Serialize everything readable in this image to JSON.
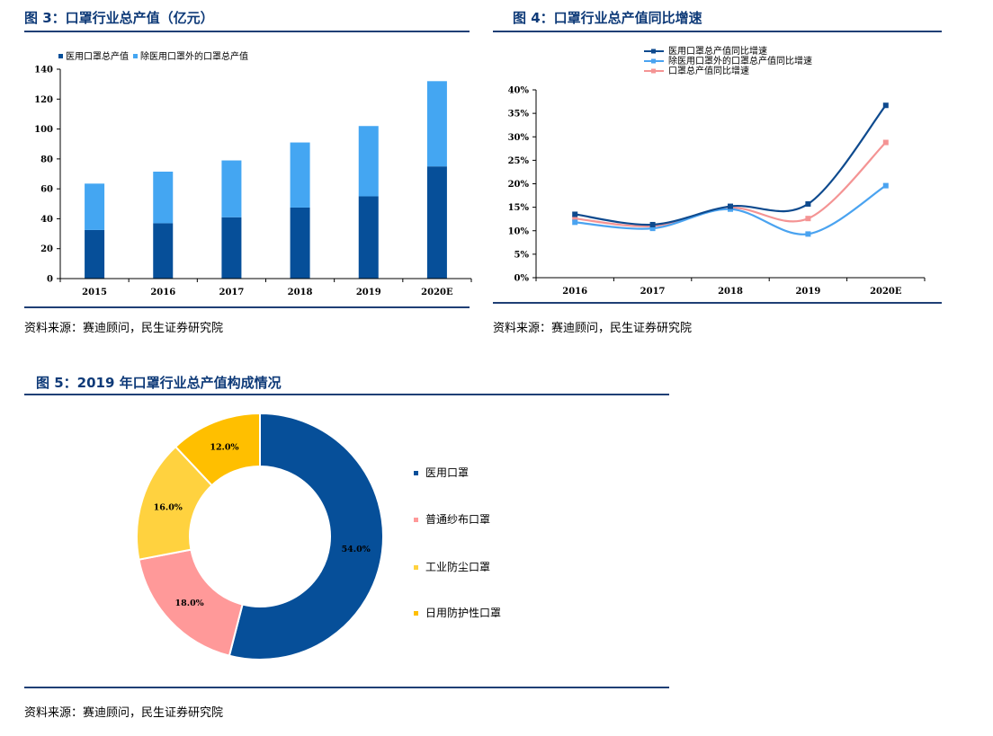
{
  "fig3": {
    "title": "图 3：口罩行业总产值（亿元）",
    "source": "资料来源：赛迪顾问，民生证券研究院",
    "colors": {
      "medical": "#064f99",
      "other": "#44a6f2"
    }
  },
  "fig4": {
    "title": "图 4：口罩行业总产值同比增速",
    "source": "资料来源：赛迪顾问，民生证券研究院",
    "colors": {
      "medical": "#0e4a8e",
      "other": "#4aa3f0",
      "total": "#f49494"
    }
  },
  "fig5": {
    "title": "图 5：2019 年口罩行业总产值构成情况",
    "source": "资料来源：赛迪顾问，民生证券研究院",
    "colors": [
      "#064f99",
      "#ff9999",
      "#ffd23f",
      "#ffbf00"
    ]
  },
  "chart_data": [
    {
      "type": "bar",
      "stacked": true,
      "categories": [
        "2015",
        "2016",
        "2017",
        "2018",
        "2019",
        "2020E"
      ],
      "series": [
        {
          "name": "医用口罩总产值",
          "values": [
            32.5,
            37,
            41,
            47.5,
            55,
            75
          ]
        },
        {
          "name": "除医用口罩外的口罩总产值",
          "values": [
            31,
            34.5,
            38,
            43.5,
            47,
            57
          ]
        }
      ],
      "ylim": [
        0,
        140
      ],
      "yticks": [
        0,
        20,
        40,
        60,
        80,
        100,
        120,
        140
      ],
      "legend_position": "top-left"
    },
    {
      "type": "line",
      "categories": [
        "2016",
        "2017",
        "2018",
        "2019",
        "2020E"
      ],
      "series": [
        {
          "name": "医用口罩总产值同比增速",
          "values": [
            13.5,
            11.3,
            15.2,
            15.7,
            36.7
          ]
        },
        {
          "name": "除医用口罩外的口罩总产值同比增速",
          "values": [
            11.8,
            10.5,
            14.6,
            9.3,
            19.6
          ]
        },
        {
          "name": "口罩总产值同比增速",
          "values": [
            12.6,
            11,
            14.9,
            12.6,
            28.8
          ]
        }
      ],
      "ylim": [
        0,
        40
      ],
      "yticks": [
        "0%",
        "5%",
        "10%",
        "15%",
        "20%",
        "25%",
        "30%",
        "35%",
        "40%"
      ],
      "legend_position": "top"
    },
    {
      "type": "pie",
      "donut": true,
      "labels": [
        "医用口罩",
        "普通纱布口罩",
        "工业防尘口罩",
        "日用防护性口罩"
      ],
      "values": [
        54.0,
        18.0,
        16.0,
        12.0
      ],
      "value_labels": [
        "54.0%",
        "18.0%",
        "16.0%",
        "12.0%"
      ],
      "legend_position": "right"
    }
  ]
}
